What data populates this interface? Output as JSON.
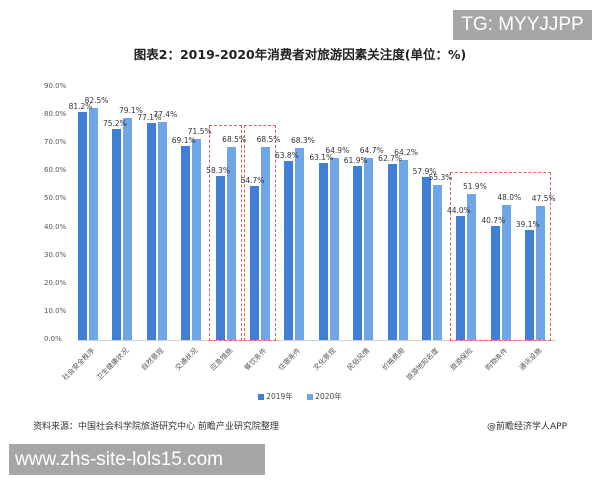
{
  "watermarks": {
    "top_right": "TG: MYYJJPP",
    "bottom_left": "www.zhs-site-lols15.com"
  },
  "footer": {
    "source": "资料来源：中国社会科学院旅游研究中心 前瞻产业研究院整理",
    "credit": "@前瞻经济学人APP"
  },
  "chart_data": {
    "type": "bar",
    "title": "图表2：2019-2020年消费者对旅游因素关注度(单位：%)",
    "xlabel": "",
    "ylabel": "",
    "ylim": [
      0,
      90
    ],
    "yticks": [
      "0.0%",
      "10.0%",
      "20.0%",
      "30.0%",
      "40.0%",
      "50.0%",
      "60.0%",
      "70.0%",
      "80.0%",
      "90.0%"
    ],
    "grid": false,
    "legend_position": "bottom",
    "categories": [
      "社会安全秩序",
      "卫生健康状况",
      "自然景观",
      "交通状况",
      "应急措施",
      "餐饮条件",
      "住宿条件",
      "文化景观",
      "民俗风情",
      "价格费用",
      "旅游地知名度",
      "旅游保险",
      "购物条件",
      "通讯设施"
    ],
    "series": [
      {
        "name": "2019年",
        "color": "#3f7fd6",
        "values": [
          81.2,
          75.2,
          77.1,
          69.1,
          58.3,
          54.7,
          63.8,
          63.1,
          61.9,
          62.7,
          57.9,
          44.0,
          40.7,
          39.1
        ]
      },
      {
        "name": "2020年",
        "color": "#70a5e8",
        "values": [
          82.5,
          79.1,
          77.4,
          71.5,
          68.5,
          68.5,
          68.3,
          64.9,
          64.7,
          64.2,
          55.3,
          51.9,
          48.0,
          47.5
        ]
      }
    ],
    "value_labels": {
      "2019": [
        "81.2%",
        "75.2%",
        "77.1%",
        "69.1%",
        "58.3%",
        "54.7%",
        "63.8%",
        "63.1%",
        "61.9%",
        "62.7%",
        "57.9%",
        "44.0%",
        "40.7%",
        "39.1%"
      ],
      "2020": [
        "82.5%",
        "79.1%",
        "77.4%",
        "71.5%",
        "68.5%",
        "68.5%",
        "68.3%",
        "64.9%",
        "64.7%",
        "64.2%",
        "55.3%",
        "51.9%",
        "48.0%",
        "47.5%"
      ]
    },
    "highlight_boxes": [
      {
        "categories": [
          "应急措施"
        ],
        "color": "#e06060"
      },
      {
        "categories": [
          "餐饮条件"
        ],
        "color": "#e06060"
      },
      {
        "categories": [
          "旅游保险",
          "购物条件",
          "通讯设施"
        ],
        "color": "#e06060"
      }
    ]
  }
}
